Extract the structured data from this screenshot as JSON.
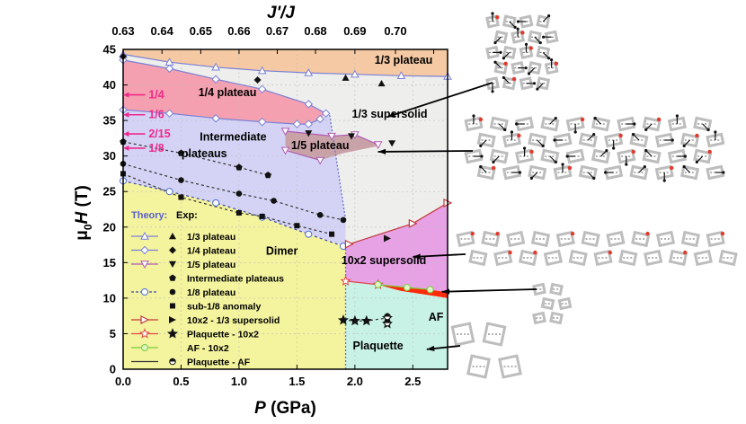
{
  "chart_data": {
    "type": "scatter",
    "title": "",
    "xlabel_prefix": "P",
    "xlabel_suffix": "(GPa)",
    "ylabel_main": "μ",
    "ylabel_sub": "0",
    "ylabel_H": "H",
    "ylabel_units": "(T)",
    "top_xlabel": "J'/J",
    "xlim": [
      0,
      2.8
    ],
    "ylim": [
      0,
      45
    ],
    "x_ticks": [
      0.0,
      0.5,
      1.0,
      1.5,
      2.0,
      2.5
    ],
    "x_tick_labels": [
      "0.0",
      "0.5",
      "1.0",
      "1.5",
      "2.0",
      "2.5"
    ],
    "y_ticks": [
      0,
      5,
      10,
      15,
      20,
      25,
      30,
      35,
      40,
      45
    ],
    "y_tick_labels": [
      "0",
      "5",
      "10",
      "15",
      "20",
      "25",
      "30",
      "35",
      "40",
      "45"
    ],
    "top_ticks_P": [
      0.0,
      0.335,
      0.67,
      1.0,
      1.33,
      1.66,
      2.0,
      2.35,
      2.68
    ],
    "top_tick_labels": [
      "0.63",
      "0.64",
      "0.65",
      "0.66",
      "0.67",
      "0.68",
      "0.69",
      "0.70",
      ""
    ],
    "top_tick_labels_shown": [
      "0.63",
      "0.64",
      "0.65",
      "0.66",
      "0.67",
      "0.68",
      "0.69",
      "0.70"
    ],
    "region_labels": [
      {
        "text": "1/3 plateau",
        "P": 2.42,
        "H": 43.0
      },
      {
        "text": "1/4 plateau",
        "P": 0.9,
        "H": 38.4
      },
      {
        "text": "1/3 supersolid",
        "P": 2.3,
        "H": 35.4
      },
      {
        "text": "1/5 plateau",
        "P": 1.7,
        "H": 31.0
      },
      {
        "text": "Intermediate",
        "P": 0.95,
        "H": 32.2
      },
      {
        "text": "plateaus",
        "P": 0.7,
        "H": 29.8
      },
      {
        "text": "Dimer",
        "P": 1.37,
        "H": 16.1
      },
      {
        "text": "10x2 supersolid",
        "P": 2.25,
        "H": 14.8
      },
      {
        "text": "AF",
        "P": 2.7,
        "H": 6.8
      },
      {
        "text": "Plaquette",
        "P": 2.2,
        "H": 2.8
      }
    ],
    "fraction_labels": [
      {
        "text": "1/4",
        "P": 0.22,
        "H": 38.1
      },
      {
        "text": "1/6",
        "P": 0.22,
        "H": 35.3
      },
      {
        "text": "2/15",
        "P": 0.22,
        "H": 32.6
      },
      {
        "text": "1/8",
        "P": 0.22,
        "H": 30.6
      }
    ],
    "legend": {
      "theory_label": "Theory:",
      "exp_label": "Exp:",
      "entries": [
        "1/3 plateau",
        "1/4 plateau",
        "1/5 plateau",
        "Intermediate plateaus",
        "1/8 plateau",
        "sub-1/8 anomaly",
        "10x2 - 1/3 supersolid",
        "Plaquette - 10x2",
        "AF - 10x2",
        "Plaquette - AF"
      ]
    },
    "series": [
      {
        "name": "1/3 plateau theory",
        "x": [
          0.0,
          0.4,
          0.8,
          1.2,
          1.6,
          2.0,
          2.4,
          2.8
        ],
        "y": [
          44.3,
          43.2,
          42.5,
          42.0,
          41.7,
          41.5,
          41.3,
          41.2
        ]
      },
      {
        "name": "1/4 plateau upper theory",
        "x": [
          0.0,
          0.4,
          0.8,
          1.2,
          1.6,
          1.75
        ],
        "y": [
          43.5,
          42.3,
          40.8,
          39.4,
          37.3,
          36.0
        ]
      },
      {
        "name": "1/4 plateau lower theory",
        "x": [
          0.0,
          0.4,
          0.8,
          1.2,
          1.5,
          1.6,
          1.7
        ],
        "y": [
          36.5,
          36.0,
          35.3,
          34.8,
          34.5,
          34.5,
          35.2
        ]
      },
      {
        "name": "1/5 plateau upper theory",
        "x": [
          1.4,
          1.8,
          2.0,
          2.2
        ],
        "y": [
          33.5,
          32.8,
          33.0,
          31.6
        ]
      },
      {
        "name": "1/5 plateau lower theory",
        "x": [
          1.4,
          1.7
        ],
        "y": [
          30.8,
          29.4
        ]
      },
      {
        "name": "1/8 plateau theory",
        "x": [
          0.0,
          0.4,
          0.8,
          1.2,
          1.6,
          1.9
        ],
        "y": [
          26.5,
          25.0,
          23.4,
          21.4,
          19.0,
          17.3
        ]
      },
      {
        "name": "10x2 - 1/3 supersolid theory",
        "x": [
          1.95,
          2.5,
          2.8
        ],
        "y": [
          17.6,
          20.5,
          23.4
        ]
      },
      {
        "name": "Plaquette - 10x2 theory",
        "x": [
          1.92,
          2.2
        ],
        "y": [
          12.4,
          11.9
        ]
      },
      {
        "name": "AF - 10x2 theory",
        "x": [
          2.2,
          2.45,
          2.65
        ],
        "y": [
          11.9,
          11.5,
          11.2
        ]
      },
      {
        "name": "1/3 plateau exp",
        "x": [
          1.92,
          2.23
        ],
        "y": [
          41.0,
          40.2
        ]
      },
      {
        "name": "1/4 plateau exp",
        "x": [
          0.0,
          1.16
        ],
        "y": [
          44.0,
          40.7
        ]
      },
      {
        "name": "1/5 plateau exp",
        "x": [
          1.6,
          1.97,
          2.32
        ],
        "y": [
          33.2,
          32.8,
          31.8
        ]
      },
      {
        "name": "Intermediate plateaus exp",
        "x": [
          0.0,
          0.5,
          1.0,
          1.25
        ],
        "y": [
          32.0,
          30.4,
          28.4,
          27.3
        ]
      },
      {
        "name": "1/8 plateau exp",
        "x": [
          0.0,
          0.5,
          1.0,
          1.3,
          1.7,
          1.9
        ],
        "y": [
          28.9,
          26.6,
          24.7,
          23.7,
          21.7,
          21.0
        ]
      },
      {
        "name": "sub-1/8 anomaly exp",
        "x": [
          0.0,
          0.5,
          1.0,
          1.2,
          1.5,
          1.8
        ],
        "y": [
          27.5,
          24.2,
          22.0,
          21.5,
          20.2,
          19.0
        ]
      },
      {
        "name": "10x2 - 1/3 supersolid exp",
        "x": [
          2.28
        ],
        "y": [
          18.4
        ]
      },
      {
        "name": "Plaquette - 10x2 exp",
        "x": [
          1.9,
          2.0,
          2.1,
          2.28,
          2.28
        ],
        "y": [
          6.9,
          6.8,
          6.8,
          7.2,
          6.4
        ]
      },
      {
        "name": "Plaquette - AF exp",
        "x": [
          2.28,
          2.28
        ],
        "y": [
          7.4,
          6.5
        ]
      }
    ]
  },
  "colors": {
    "one_third_region": "#f5c9a3",
    "supersolid_region": "#eeeeec",
    "quarter_region": "#f4a0b0",
    "fifth_region": "#c9a2a8",
    "intermediate_region": "#d4d3f5",
    "dimer_region": "#f4f39e",
    "tenbytwo_region": "#e7a2e6",
    "af_region": "#ff2a0a",
    "plaquette_region": "#c8f2e5",
    "fraction_text": "#ee2a8b",
    "theory_blue": "#5b62c9"
  }
}
